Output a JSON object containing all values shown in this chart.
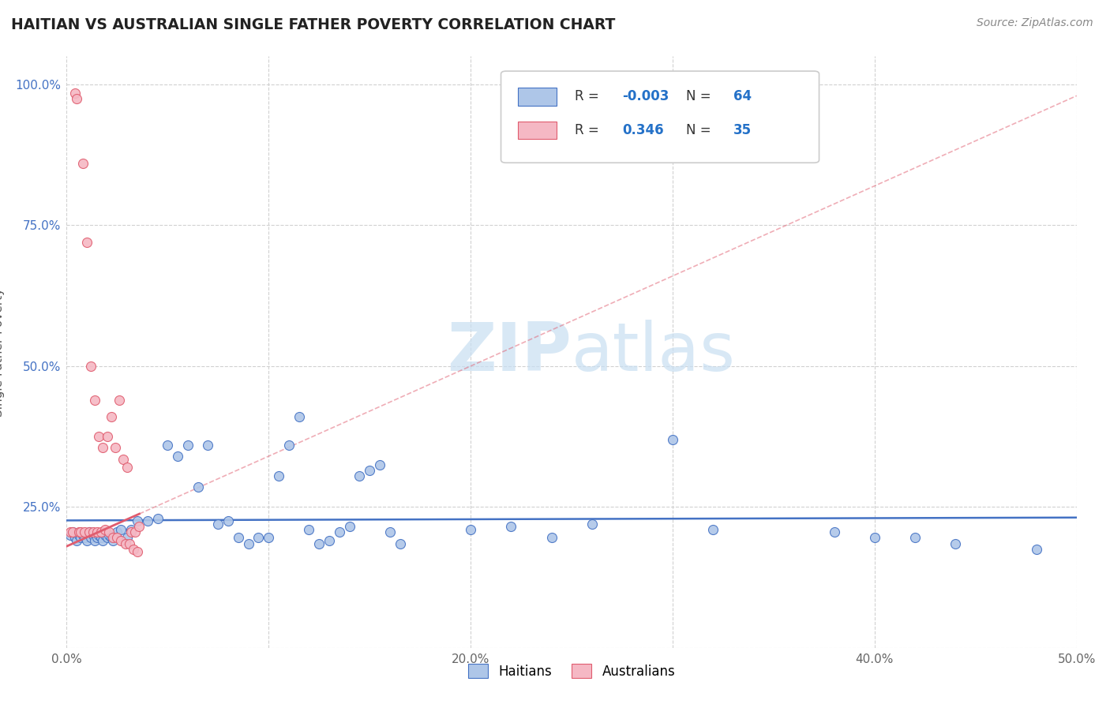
{
  "title": "HAITIAN VS AUSTRALIAN SINGLE FATHER POVERTY CORRELATION CHART",
  "source": "Source: ZipAtlas.com",
  "ylabel": "Single Father Poverty",
  "xlim": [
    0.0,
    0.5
  ],
  "ylim": [
    0.0,
    1.05
  ],
  "xticks": [
    0.0,
    0.1,
    0.2,
    0.3,
    0.4,
    0.5
  ],
  "xticklabels": [
    "0.0%",
    "",
    "20.0%",
    "",
    "40.0%",
    "50.0%"
  ],
  "yticks": [
    0.0,
    0.25,
    0.5,
    0.75,
    1.0
  ],
  "yticklabels": [
    "",
    "25.0%",
    "50.0%",
    "75.0%",
    "100.0%"
  ],
  "watermark_zip": "ZIP",
  "watermark_atlas": "atlas",
  "legend_r_blue": "-0.003",
  "legend_n_blue": "64",
  "legend_r_pink": "0.346",
  "legend_n_pink": "35",
  "blue_color": "#aec6e8",
  "pink_color": "#f5b8c4",
  "trendline_blue_color": "#4472c4",
  "trendline_pink_color": "#e05c6e",
  "blue_scatter": [
    [
      0.002,
      0.2
    ],
    [
      0.003,
      0.205
    ],
    [
      0.004,
      0.195
    ],
    [
      0.005,
      0.19
    ],
    [
      0.006,
      0.2
    ],
    [
      0.007,
      0.195
    ],
    [
      0.008,
      0.2
    ],
    [
      0.009,
      0.195
    ],
    [
      0.01,
      0.19
    ],
    [
      0.011,
      0.205
    ],
    [
      0.012,
      0.195
    ],
    [
      0.013,
      0.2
    ],
    [
      0.014,
      0.19
    ],
    [
      0.015,
      0.195
    ],
    [
      0.016,
      0.2
    ],
    [
      0.017,
      0.195
    ],
    [
      0.018,
      0.19
    ],
    [
      0.019,
      0.2
    ],
    [
      0.02,
      0.195
    ],
    [
      0.021,
      0.2
    ],
    [
      0.022,
      0.195
    ],
    [
      0.023,
      0.19
    ],
    [
      0.025,
      0.205
    ],
    [
      0.027,
      0.21
    ],
    [
      0.03,
      0.195
    ],
    [
      0.032,
      0.21
    ],
    [
      0.035,
      0.225
    ],
    [
      0.04,
      0.225
    ],
    [
      0.045,
      0.23
    ],
    [
      0.05,
      0.36
    ],
    [
      0.055,
      0.34
    ],
    [
      0.06,
      0.36
    ],
    [
      0.065,
      0.285
    ],
    [
      0.07,
      0.36
    ],
    [
      0.075,
      0.22
    ],
    [
      0.08,
      0.225
    ],
    [
      0.085,
      0.195
    ],
    [
      0.09,
      0.185
    ],
    [
      0.095,
      0.195
    ],
    [
      0.1,
      0.195
    ],
    [
      0.105,
      0.305
    ],
    [
      0.11,
      0.36
    ],
    [
      0.115,
      0.41
    ],
    [
      0.12,
      0.21
    ],
    [
      0.125,
      0.185
    ],
    [
      0.13,
      0.19
    ],
    [
      0.135,
      0.205
    ],
    [
      0.14,
      0.215
    ],
    [
      0.145,
      0.305
    ],
    [
      0.15,
      0.315
    ],
    [
      0.155,
      0.325
    ],
    [
      0.16,
      0.205
    ],
    [
      0.165,
      0.185
    ],
    [
      0.2,
      0.21
    ],
    [
      0.22,
      0.215
    ],
    [
      0.24,
      0.195
    ],
    [
      0.26,
      0.22
    ],
    [
      0.3,
      0.37
    ],
    [
      0.32,
      0.21
    ],
    [
      0.38,
      0.205
    ],
    [
      0.4,
      0.195
    ],
    [
      0.42,
      0.195
    ],
    [
      0.44,
      0.185
    ],
    [
      0.48,
      0.175
    ]
  ],
  "pink_scatter": [
    [
      0.004,
      0.985
    ],
    [
      0.005,
      0.975
    ],
    [
      0.008,
      0.86
    ],
    [
      0.01,
      0.72
    ],
    [
      0.012,
      0.5
    ],
    [
      0.014,
      0.44
    ],
    [
      0.016,
      0.375
    ],
    [
      0.018,
      0.355
    ],
    [
      0.02,
      0.375
    ],
    [
      0.022,
      0.41
    ],
    [
      0.024,
      0.355
    ],
    [
      0.026,
      0.44
    ],
    [
      0.028,
      0.335
    ],
    [
      0.03,
      0.32
    ],
    [
      0.032,
      0.205
    ],
    [
      0.034,
      0.205
    ],
    [
      0.036,
      0.215
    ],
    [
      0.002,
      0.205
    ],
    [
      0.003,
      0.205
    ],
    [
      0.006,
      0.205
    ],
    [
      0.007,
      0.205
    ],
    [
      0.009,
      0.205
    ],
    [
      0.011,
      0.205
    ],
    [
      0.013,
      0.205
    ],
    [
      0.015,
      0.205
    ],
    [
      0.017,
      0.205
    ],
    [
      0.019,
      0.21
    ],
    [
      0.021,
      0.205
    ],
    [
      0.023,
      0.195
    ],
    [
      0.025,
      0.195
    ],
    [
      0.027,
      0.19
    ],
    [
      0.029,
      0.185
    ],
    [
      0.031,
      0.185
    ],
    [
      0.033,
      0.175
    ],
    [
      0.035,
      0.17
    ]
  ],
  "pink_trendline_x": [
    0.0,
    0.5
  ],
  "pink_trendline_y": [
    0.18,
    0.98
  ]
}
